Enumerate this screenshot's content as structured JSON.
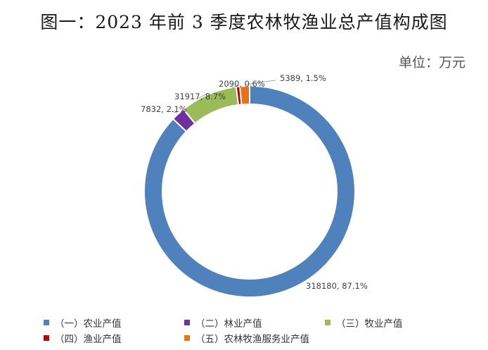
{
  "title": "图一：2023 年前 3 季度农林牧渔业总产值构成图",
  "unit": "单位：万元",
  "chart_data": {
    "type": "pie",
    "donut": true,
    "title": "图一：2023 年前 3 季度农林牧渔业总产值构成图",
    "unit_label": "单位：万元",
    "legend_position": "bottom",
    "series": [
      {
        "name": "（一）农业产值",
        "value": 318180,
        "percent": "87.1%",
        "label": "318180, 87.1%",
        "color": "#4f81bd"
      },
      {
        "name": "（二）林业产值",
        "value": 7832,
        "percent": "2.1%",
        "label": "7832, 2.1%",
        "color": "#7030a0"
      },
      {
        "name": "（三）牧业产值",
        "value": 31917,
        "percent": "8.7%",
        "label": "31917, 8.7%",
        "color": "#9bbb59"
      },
      {
        "name": "（四）渔业产值",
        "value": 2090,
        "percent": "0.6%",
        "label": "2090, 0.6%",
        "color": "#c00000"
      },
      {
        "name": "（五）农林牧渔服务业产值",
        "value": 5389,
        "percent": "1.5%",
        "label": "5389, 1.5%",
        "color": "#e8721c"
      }
    ]
  }
}
